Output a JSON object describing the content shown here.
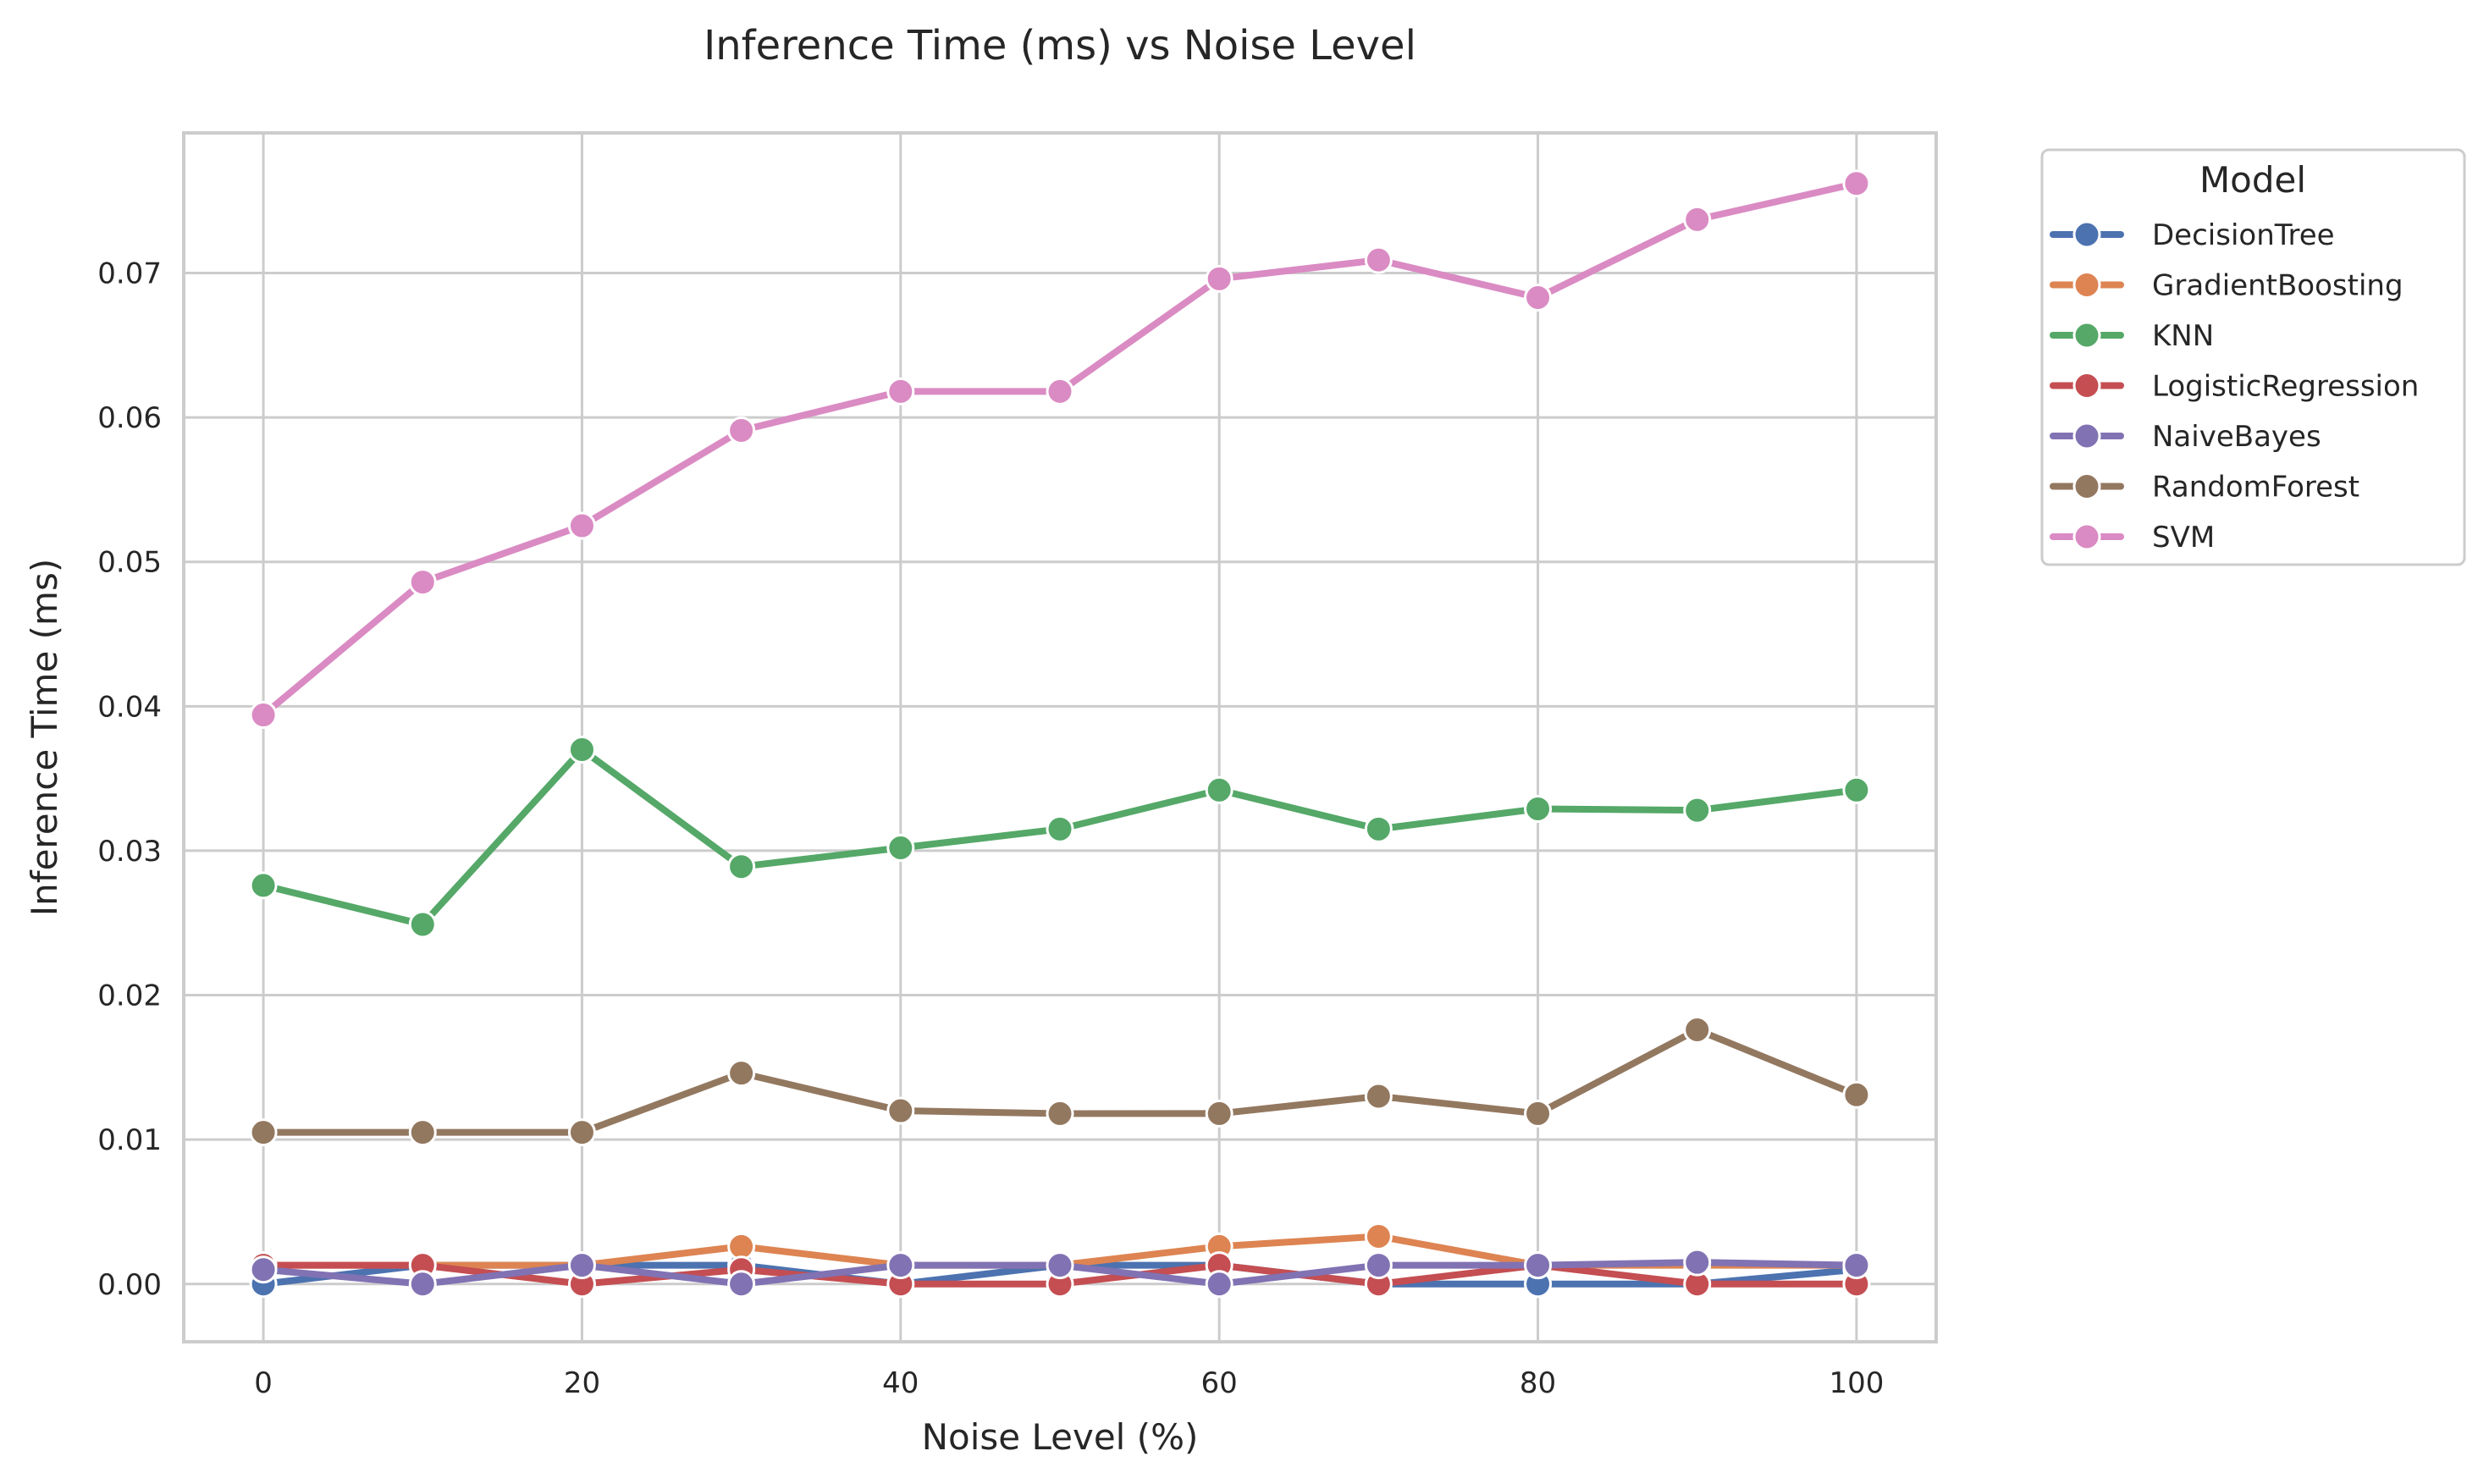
{
  "chart_data": {
    "type": "line",
    "title": "Inference Time (ms) vs Noise Level",
    "xlabel": "Noise Level (%)",
    "ylabel": "Inference Time (ms)",
    "x": [
      0,
      10,
      20,
      30,
      40,
      50,
      60,
      70,
      80,
      90,
      100
    ],
    "xlim": [
      -5,
      105
    ],
    "ylim": [
      -0.004,
      0.0797
    ],
    "xticks": [
      0,
      20,
      40,
      60,
      80,
      100
    ],
    "xtick_labels": [
      "0",
      "20",
      "40",
      "60",
      "80",
      "100"
    ],
    "yticks": [
      0.0,
      0.01,
      0.02,
      0.03,
      0.04,
      0.05,
      0.06,
      0.07
    ],
    "ytick_labels": [
      "0.00",
      "0.01",
      "0.02",
      "0.03",
      "0.04",
      "0.05",
      "0.06",
      "0.07"
    ],
    "grid": true,
    "legend": {
      "title": "Model",
      "placement": "outside-top-right"
    },
    "series": [
      {
        "name": "DecisionTree",
        "color": "#4c72b0",
        "values": [
          0.0,
          0.0013,
          0.0013,
          0.0013,
          0.0,
          0.0013,
          0.0013,
          0.0,
          0.0,
          0.0,
          0.001
        ]
      },
      {
        "name": "GradientBoosting",
        "color": "#dd8452",
        "values": [
          0.0013,
          0.0013,
          0.0013,
          0.0026,
          0.0013,
          0.0013,
          0.0026,
          0.0033,
          0.0013,
          0.0013,
          0.0013
        ]
      },
      {
        "name": "KNN",
        "color": "#55a868",
        "values": [
          0.0276,
          0.0249,
          0.037,
          0.0289,
          0.0302,
          0.0315,
          0.0342,
          0.0315,
          0.0329,
          0.0328,
          0.0342
        ]
      },
      {
        "name": "LogisticRegression",
        "color": "#c44e52",
        "values": [
          0.0013,
          0.0013,
          0.0,
          0.001,
          0.0,
          0.0,
          0.0013,
          0.0,
          0.0013,
          0.0,
          0.0
        ]
      },
      {
        "name": "NaiveBayes",
        "color": "#8172b3",
        "values": [
          0.001,
          0.0,
          0.0013,
          0.0,
          0.0013,
          0.0013,
          0.0,
          0.0013,
          0.0013,
          0.0015,
          0.0013
        ]
      },
      {
        "name": "RandomForest",
        "color": "#937860",
        "values": [
          0.0105,
          0.0105,
          0.0105,
          0.0146,
          0.012,
          0.0118,
          0.0118,
          0.013,
          0.0118,
          0.0176,
          0.0131
        ]
      },
      {
        "name": "SVM",
        "color": "#da8bc3",
        "values": [
          0.0394,
          0.0486,
          0.0525,
          0.0591,
          0.0618,
          0.0618,
          0.0696,
          0.0709,
          0.0683,
          0.0737,
          0.0762
        ]
      }
    ]
  }
}
